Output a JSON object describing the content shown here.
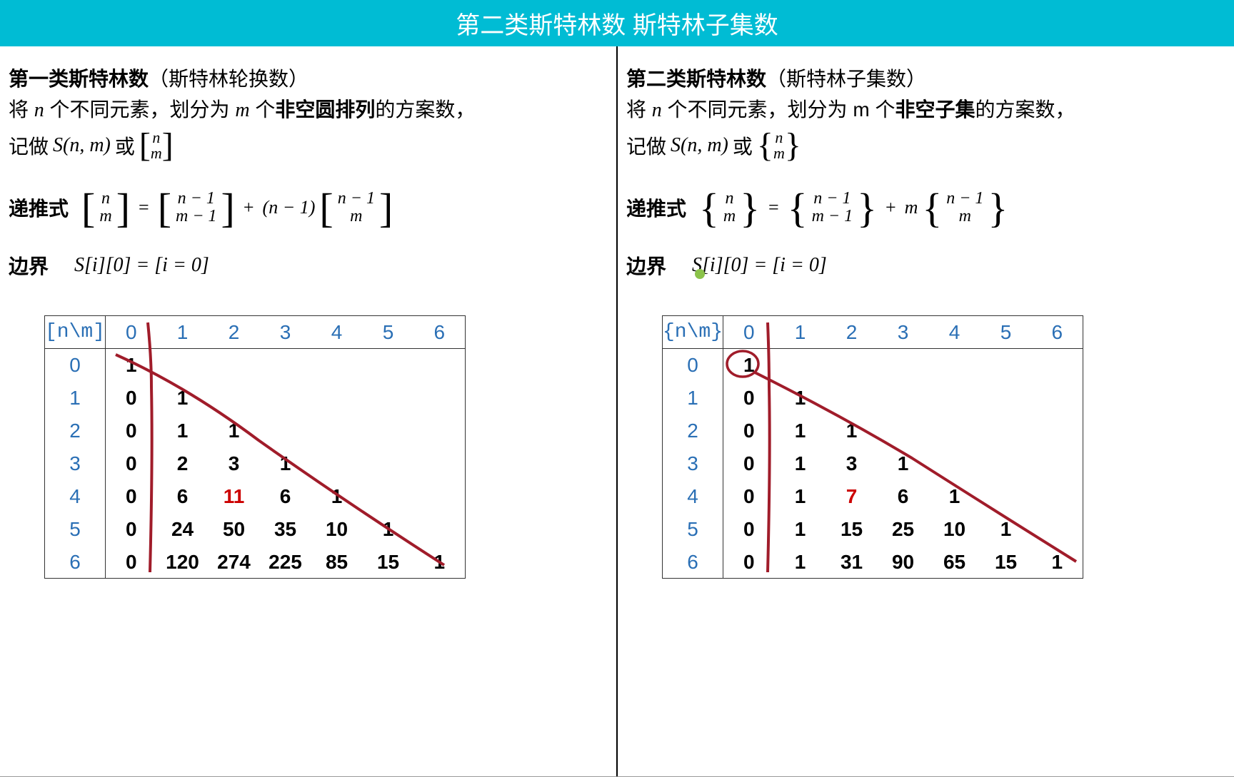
{
  "header": {
    "title": "第二类斯特林数 斯特林子集数"
  },
  "colors": {
    "header_bg": "#00bcd4",
    "header_text": "#ffffff",
    "table_header_text": "#2a6fb5",
    "highlight_text": "#cc0000",
    "annotation_stroke": "#a01c2a",
    "green_dot": "#8bc34a",
    "border": "#333333",
    "background": "#ffffff"
  },
  "left": {
    "title_bold": "第一类斯特林数",
    "title_plain": "（斯特林轮换数）",
    "desc_pre": "将 ",
    "desc_mid1": " 个不同元素，划分为 ",
    "desc_bold": "非空圆排列",
    "desc_post": "的方案数，",
    "notation_pre": "记做 ",
    "notation_snm": "S(n, m)",
    "notation_or": " 或 ",
    "br_top": "n",
    "br_bot": "m",
    "recur_label": "递推式",
    "f_top1": "n",
    "f_bot1": "m",
    "f_top2": "n − 1",
    "f_bot2": "m − 1",
    "f_coef": "(n − 1)",
    "f_top3": "n − 1",
    "f_bot3": "m",
    "boundary_label": "边界",
    "boundary_expr": "S[i][0] = [i = 0]",
    "table": {
      "corner": "[n\\m]",
      "cols": [
        "0",
        "1",
        "2",
        "3",
        "4",
        "5",
        "6"
      ],
      "rows_idx": [
        "0",
        "1",
        "2",
        "3",
        "4",
        "5",
        "6"
      ],
      "cells": [
        [
          "1",
          "",
          "",
          "",
          "",
          "",
          ""
        ],
        [
          "0",
          "1",
          "",
          "",
          "",
          "",
          ""
        ],
        [
          "0",
          "1",
          "1",
          "",
          "",
          "",
          ""
        ],
        [
          "0",
          "2",
          "3",
          "1",
          "",
          "",
          ""
        ],
        [
          "0",
          "6",
          "11",
          "6",
          "1",
          "",
          ""
        ],
        [
          "0",
          "24",
          "50",
          "35",
          "10",
          "1",
          ""
        ],
        [
          "0",
          "120",
          "274",
          "225",
          "85",
          "15",
          "1"
        ]
      ],
      "highlight": {
        "row": 4,
        "col": 2
      }
    }
  },
  "right": {
    "title_bold": "第二类斯特林数",
    "title_plain": "（斯特林子集数）",
    "desc_pre": "将 ",
    "desc_mid1": " 个不同元素，划分为 m 个",
    "desc_bold": "非空子集",
    "desc_post": "的方案数，",
    "notation_pre": "记做 ",
    "notation_snm": "S(n, m)",
    "notation_or": " 或 ",
    "br_top": "n",
    "br_bot": "m",
    "recur_label": "递推式",
    "f_top1": "n",
    "f_bot1": "m",
    "f_top2": "n − 1",
    "f_bot2": "m − 1",
    "f_coef": "m",
    "f_top3": "n − 1",
    "f_bot3": "m",
    "boundary_label": "边界",
    "boundary_expr": "S[i][0] = [i = 0]",
    "table": {
      "corner": "{n\\m}",
      "cols": [
        "0",
        "1",
        "2",
        "3",
        "4",
        "5",
        "6"
      ],
      "rows_idx": [
        "0",
        "1",
        "2",
        "3",
        "4",
        "5",
        "6"
      ],
      "cells": [
        [
          "1",
          "",
          "",
          "",
          "",
          "",
          ""
        ],
        [
          "0",
          "1",
          "",
          "",
          "",
          "",
          ""
        ],
        [
          "0",
          "1",
          "1",
          "",
          "",
          "",
          ""
        ],
        [
          "0",
          "1",
          "3",
          "1",
          "",
          "",
          ""
        ],
        [
          "0",
          "1",
          "7",
          "6",
          "1",
          "",
          ""
        ],
        [
          "0",
          "1",
          "15",
          "25",
          "10",
          "1",
          ""
        ],
        [
          "0",
          "1",
          "31",
          "90",
          "65",
          "15",
          "1"
        ]
      ],
      "highlight": {
        "row": 4,
        "col": 2
      }
    }
  }
}
